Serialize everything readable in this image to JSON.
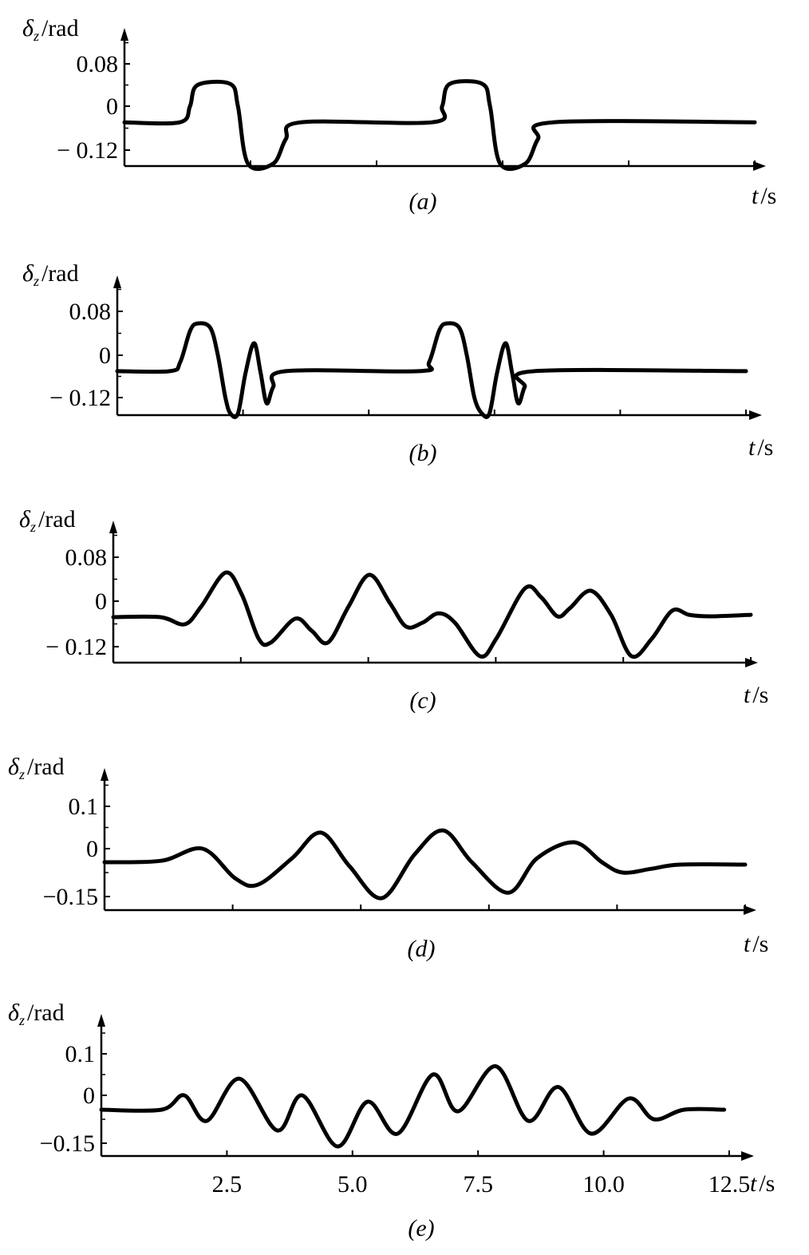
{
  "chart_data": [
    {
      "type": "line",
      "caption": "(a)",
      "ylabel": {
        "symbol": "δ",
        "sub": "z",
        "unit": "/rad"
      },
      "xlabel": {
        "symbol": "t",
        "unit": "/s"
      },
      "yticks": [
        {
          "value": 0.08,
          "label": "0.08"
        },
        {
          "value": 0,
          "label": "0"
        },
        {
          "value": -0.12,
          "label": "− 0.12"
        }
      ],
      "xticks": [
        2.5,
        5.0,
        7.5,
        10.0,
        12.5
      ],
      "xtick_labels": [],
      "xlim": [
        0,
        12.5
      ],
      "color": "#000000",
      "series": [
        {
          "t": [
            0,
            1.1,
            1.3,
            1.45,
            2.1,
            2.25,
            2.45,
            2.95,
            3.2,
            3.5,
            6.1,
            6.3,
            6.45,
            7.1,
            7.25,
            7.45,
            7.95,
            8.2,
            8.5,
            12.5
          ],
          "values": [
            -0.044,
            -0.044,
            0.0,
            0.04,
            0.042,
            0.0,
            -0.157,
            -0.157,
            -0.09,
            -0.044,
            -0.044,
            0.0,
            0.042,
            0.042,
            0.0,
            -0.157,
            -0.157,
            -0.09,
            -0.044,
            -0.044
          ]
        }
      ]
    },
    {
      "type": "line",
      "caption": "(b)",
      "ylabel": {
        "symbol": "δ",
        "sub": "z",
        "unit": "/rad"
      },
      "xlabel": {
        "symbol": "t",
        "unit": "/s"
      },
      "yticks": [
        {
          "value": 0.08,
          "label": "0.08"
        },
        {
          "value": 0,
          "label": "0"
        },
        {
          "value": -0.12,
          "label": "− 0.12"
        }
      ],
      "xticks": [
        2.5,
        5.0,
        7.5,
        10.0,
        12.5
      ],
      "xtick_labels": [],
      "xlim": [
        0,
        12.5
      ],
      "color": "#000000",
      "series": [
        {
          "t": [
            0,
            1.05,
            1.25,
            1.45,
            1.6,
            1.85,
            2.0,
            2.15,
            2.25,
            2.4,
            2.55,
            2.72,
            2.85,
            2.97,
            3.1,
            3.35,
            6.0,
            6.2,
            6.4,
            6.55,
            6.8,
            6.95,
            7.1,
            7.25,
            7.4,
            7.55,
            7.72,
            7.85,
            7.97,
            8.1,
            8.3,
            12.5
          ],
          "values": [
            -0.045,
            -0.045,
            -0.02,
            0.045,
            0.058,
            0.05,
            0.0,
            -0.12,
            -0.165,
            -0.165,
            -0.05,
            0.022,
            -0.05,
            -0.136,
            -0.09,
            -0.045,
            -0.045,
            -0.02,
            0.045,
            0.058,
            0.05,
            0.0,
            -0.12,
            -0.165,
            -0.165,
            -0.05,
            0.022,
            -0.05,
            -0.136,
            -0.09,
            -0.045,
            -0.045
          ]
        }
      ]
    },
    {
      "type": "line",
      "caption": "(c)",
      "ylabel": {
        "symbol": "δ",
        "sub": "z",
        "unit": "/rad"
      },
      "xlabel": {
        "symbol": "t",
        "unit": "/s"
      },
      "yticks": [
        {
          "value": 0.08,
          "label": "0.08"
        },
        {
          "value": 0,
          "label": "0"
        },
        {
          "value": -0.12,
          "label": "− 0.12"
        }
      ],
      "xticks": [
        2.5,
        5.0,
        7.5,
        10.0,
        12.5
      ],
      "xtick_labels": [],
      "xlim": [
        0,
        12.5
      ],
      "color": "#000000",
      "series": [
        {
          "t": [
            0,
            0.92,
            1.4,
            1.72,
            2.2,
            2.52,
            2.85,
            3.09,
            3.57,
            3.89,
            4.21,
            4.61,
            5.02,
            5.42,
            5.74,
            6.06,
            6.38,
            6.7,
            7.19,
            7.51,
            8.07,
            8.39,
            8.71,
            8.95,
            9.36,
            9.76,
            10.16,
            10.56,
            10.96,
            11.29,
            11.69,
            12.5
          ],
          "values": [
            -0.042,
            -0.042,
            -0.061,
            -0.015,
            0.052,
            0.012,
            -0.099,
            -0.109,
            -0.046,
            -0.078,
            -0.109,
            -0.015,
            0.048,
            -0.004,
            -0.067,
            -0.057,
            -0.032,
            -0.057,
            -0.145,
            -0.099,
            0.023,
            0.007,
            -0.04,
            -0.019,
            0.019,
            -0.036,
            -0.145,
            -0.099,
            -0.025,
            -0.036,
            -0.04,
            -0.036
          ]
        }
      ]
    },
    {
      "type": "line",
      "caption": "(d)",
      "ylabel": {
        "symbol": "δ",
        "sub": "z",
        "unit": "/rad"
      },
      "xlabel": {
        "symbol": "t",
        "unit": "/s"
      },
      "yticks": [
        {
          "value": 0.1,
          "label": "0.1"
        },
        {
          "value": 0,
          "label": "0"
        },
        {
          "value": -0.15,
          "label": "−0.15"
        }
      ],
      "xticks": [
        2.5,
        5.0,
        7.5,
        10.0,
        12.5
      ],
      "xtick_labels": [],
      "xlim": [
        0,
        12.5
      ],
      "color": "#000000",
      "series": [
        {
          "t": [
            0,
            1.11,
            1.91,
            2.55,
            2.99,
            3.66,
            4.22,
            4.78,
            5.41,
            6.05,
            6.61,
            7.17,
            7.88,
            8.44,
            9.16,
            9.71,
            10.11,
            10.67,
            11.23,
            12.5
          ],
          "values": [
            -0.0425,
            -0.038,
            0.0,
            -0.093,
            -0.113,
            -0.03,
            0.038,
            -0.055,
            -0.155,
            -0.018,
            0.043,
            -0.043,
            -0.138,
            -0.03,
            0.015,
            -0.043,
            -0.075,
            -0.063,
            -0.05,
            -0.05
          ]
        }
      ]
    },
    {
      "type": "line",
      "caption": "(e)",
      "ylabel": {
        "symbol": "δ",
        "sub": "z",
        "unit": "/rad"
      },
      "xlabel": {
        "symbol": "t",
        "unit": "/s"
      },
      "yticks": [
        {
          "value": 0.1,
          "label": "0.1"
        },
        {
          "value": 0,
          "label": "0"
        },
        {
          "value": -0.15,
          "label": "−0.15"
        }
      ],
      "xticks": [
        2.5,
        5.0,
        7.5,
        10.0,
        12.5
      ],
      "xtick_labels": [
        "2.5",
        "5.0",
        "7.5",
        "10.0",
        "12.5"
      ],
      "xlim": [
        0,
        12.5
      ],
      "color": "#000000",
      "series": [
        {
          "t": [
            0,
            1.2,
            1.65,
            2.1,
            2.75,
            3.5,
            4.0,
            4.7,
            5.3,
            5.9,
            6.6,
            7.1,
            7.85,
            8.5,
            9.1,
            9.75,
            10.5,
            11.0,
            11.6,
            12.4
          ],
          "values": [
            -0.045,
            -0.045,
            0.0,
            -0.08,
            0.04,
            -0.11,
            0.0,
            -0.16,
            -0.02,
            -0.12,
            0.05,
            -0.05,
            0.07,
            -0.08,
            0.02,
            -0.12,
            -0.01,
            -0.075,
            -0.045,
            -0.045
          ]
        }
      ]
    }
  ]
}
